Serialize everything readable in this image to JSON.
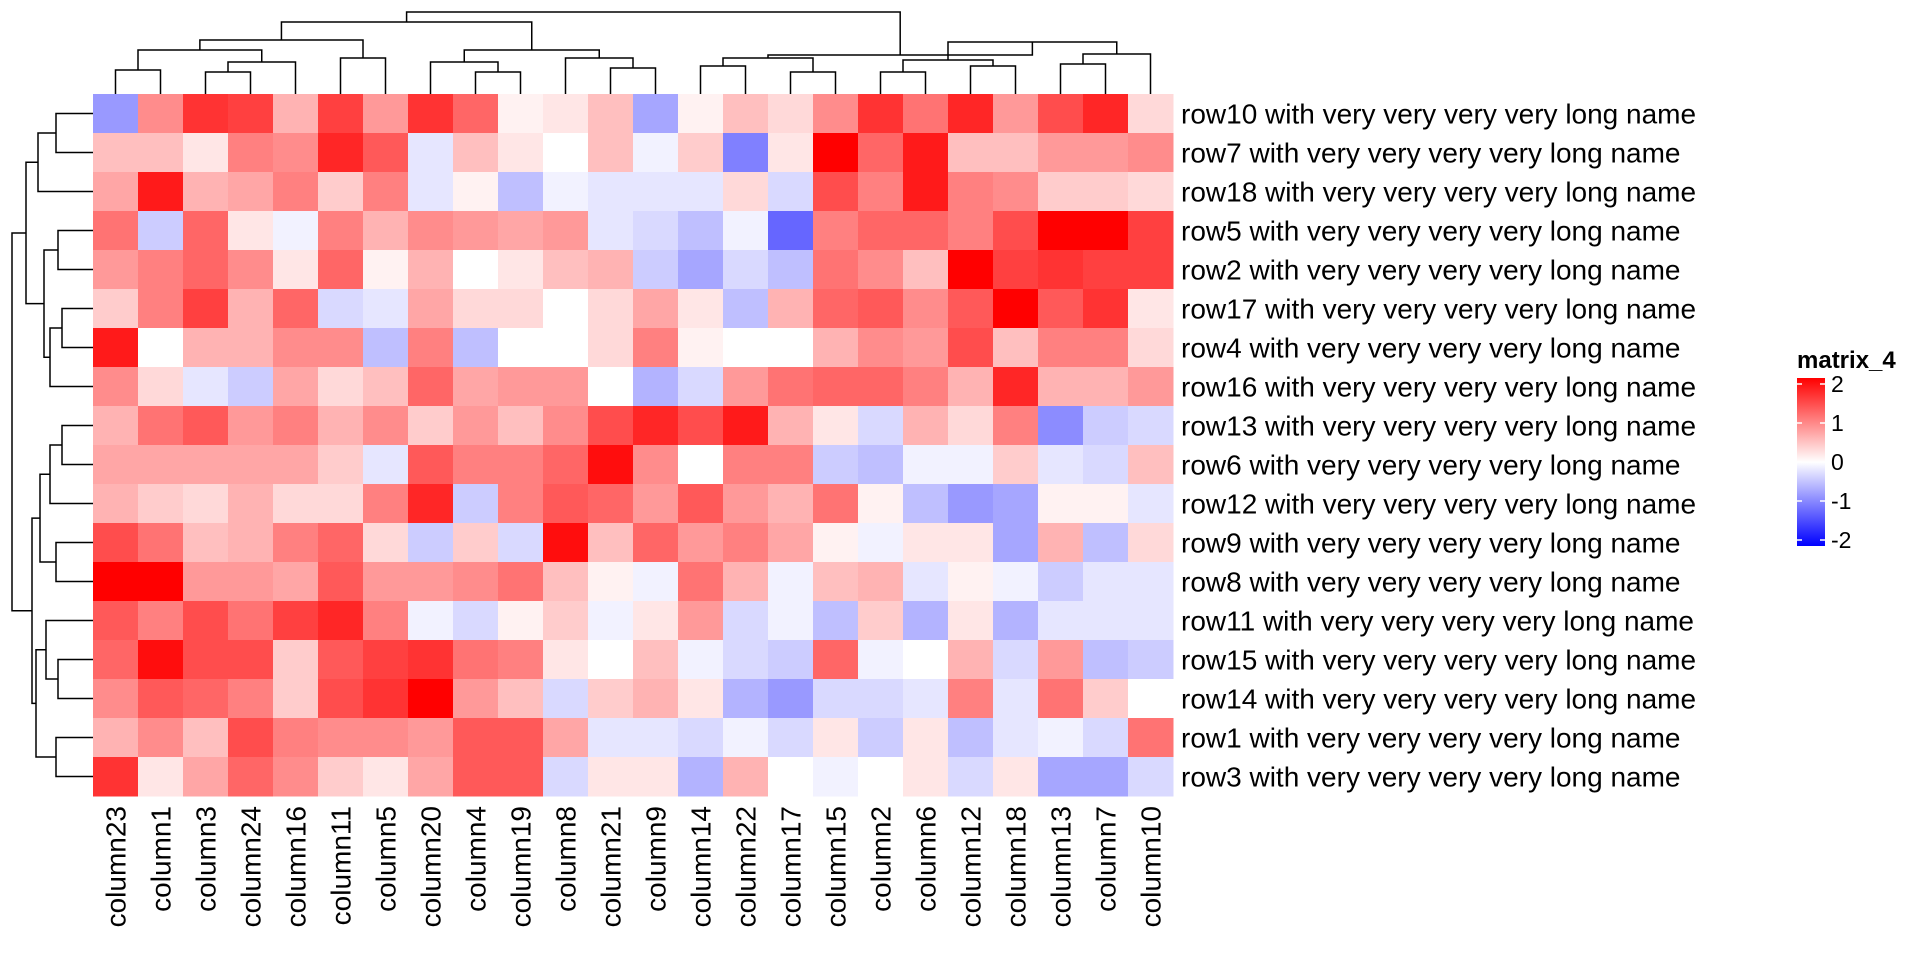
{
  "chart_data": {
    "type": "heatmap",
    "legend": {
      "title": "matrix_4",
      "placement": "right",
      "min": -2,
      "max": 2,
      "ticks": [
        2,
        1,
        0,
        -1,
        -2
      ],
      "tick_labels": [
        "2",
        "1",
        "0",
        "-1",
        "-2"
      ],
      "colors": {
        "low": "#0000FF",
        "mid": "#FFFFFF",
        "high": "#FF0000"
      }
    },
    "columns": [
      "column23",
      "column1",
      "column3",
      "column24",
      "column16",
      "column11",
      "column5",
      "column20",
      "column4",
      "column19",
      "column8",
      "column21",
      "column9",
      "column14",
      "column22",
      "column17",
      "column15",
      "column2",
      "column6",
      "column12",
      "column18",
      "column13",
      "column7",
      "column10"
    ],
    "rows": [
      "row10 with very very very very long name",
      "row7 with very very very very long name",
      "row18 with very very very very long name",
      "row5 with very very very very long name",
      "row2 with very very very very long name",
      "row17 with very very very very long name",
      "row4 with very very very very long name",
      "row16 with very very very very long name",
      "row13 with very very very very long name",
      "row6 with very very very very long name",
      "row12 with very very very very long name",
      "row9 with very very very very long name",
      "row8 with very very very very long name",
      "row11 with very very very very long name",
      "row15 with very very very very long name",
      "row14 with very very very very long name",
      "row1 with very very very very long name",
      "row3 with very very very very long name"
    ],
    "values": [
      [
        -0.8,
        0.9,
        1.6,
        1.5,
        0.6,
        1.5,
        0.8,
        1.6,
        1.2,
        0.1,
        0.2,
        0.5,
        -0.7,
        0.1,
        0.5,
        0.3,
        0.9,
        1.6,
        1.1,
        1.7,
        0.8,
        1.4,
        1.7,
        0.3
      ],
      [
        0.5,
        0.5,
        0.2,
        1.0,
        0.9,
        1.7,
        1.3,
        -0.2,
        0.5,
        0.2,
        0.0,
        0.5,
        -0.1,
        0.4,
        -1.0,
        0.2,
        2.3,
        1.2,
        1.8,
        0.5,
        0.5,
        0.8,
        0.8,
        0.9
      ],
      [
        0.7,
        1.8,
        0.6,
        0.7,
        1.0,
        0.4,
        1.0,
        -0.2,
        0.1,
        -0.5,
        -0.1,
        -0.2,
        -0.2,
        -0.2,
        0.3,
        -0.3,
        1.4,
        1.0,
        1.8,
        1.0,
        0.9,
        0.4,
        0.4,
        0.3
      ],
      [
        1.1,
        -0.4,
        1.2,
        0.2,
        -0.1,
        1.0,
        0.6,
        0.9,
        0.8,
        0.7,
        0.8,
        -0.2,
        -0.3,
        -0.5,
        -0.1,
        -1.2,
        1.0,
        1.2,
        1.2,
        1.0,
        1.4,
        2.2,
        2.3,
        1.5
      ],
      [
        0.8,
        1.0,
        1.2,
        0.9,
        0.2,
        1.2,
        0.1,
        0.6,
        0.0,
        0.2,
        0.5,
        0.6,
        -0.4,
        -0.7,
        -0.3,
        -0.5,
        1.1,
        0.9,
        0.5,
        2.3,
        1.5,
        1.6,
        1.5,
        1.5
      ],
      [
        0.4,
        1.0,
        1.5,
        0.6,
        1.2,
        -0.3,
        -0.2,
        0.7,
        0.3,
        0.3,
        0.0,
        0.3,
        0.7,
        0.2,
        -0.5,
        0.6,
        1.2,
        1.3,
        0.9,
        1.3,
        2.2,
        1.3,
        1.6,
        0.2
      ],
      [
        1.8,
        0.0,
        0.6,
        0.6,
        0.9,
        0.9,
        -0.5,
        1.0,
        -0.5,
        0.0,
        0.0,
        0.3,
        1.0,
        0.1,
        0.0,
        0.0,
        0.6,
        0.9,
        0.8,
        1.4,
        0.5,
        1.0,
        1.0,
        0.3
      ],
      [
        0.9,
        0.3,
        -0.2,
        -0.4,
        0.7,
        0.3,
        0.5,
        1.2,
        0.7,
        0.8,
        0.8,
        0.0,
        -0.6,
        -0.3,
        0.8,
        1.1,
        1.2,
        1.2,
        1.0,
        0.6,
        1.7,
        0.6,
        0.6,
        0.8
      ],
      [
        0.6,
        1.1,
        1.3,
        0.8,
        1.0,
        0.6,
        0.9,
        0.4,
        0.8,
        0.5,
        0.9,
        1.4,
        1.7,
        1.4,
        1.8,
        0.6,
        0.2,
        -0.3,
        0.6,
        0.3,
        1.0,
        -0.9,
        -0.4,
        -0.3
      ],
      [
        0.7,
        0.7,
        0.7,
        0.7,
        0.7,
        0.4,
        -0.2,
        1.3,
        1.0,
        1.0,
        1.2,
        1.9,
        0.9,
        0.0,
        1.0,
        1.0,
        -0.4,
        -0.5,
        -0.1,
        -0.1,
        0.4,
        -0.2,
        -0.3,
        0.5
      ],
      [
        0.6,
        0.4,
        0.3,
        0.6,
        0.3,
        0.3,
        1.0,
        1.7,
        -0.4,
        1.0,
        1.3,
        1.2,
        0.8,
        1.3,
        0.8,
        0.6,
        1.1,
        0.1,
        -0.5,
        -0.8,
        -0.7,
        0.1,
        0.1,
        -0.2
      ],
      [
        1.4,
        1.1,
        0.5,
        0.6,
        1.0,
        1.2,
        0.3,
        -0.4,
        0.4,
        -0.3,
        1.9,
        0.5,
        1.2,
        0.8,
        1.0,
        0.7,
        0.1,
        -0.1,
        0.2,
        0.2,
        -0.7,
        0.6,
        -0.5,
        0.3
      ],
      [
        2.0,
        2.3,
        0.8,
        0.8,
        0.7,
        1.3,
        0.8,
        0.8,
        0.9,
        1.1,
        0.5,
        0.1,
        -0.1,
        1.1,
        0.6,
        -0.1,
        0.5,
        0.6,
        -0.2,
        0.1,
        -0.1,
        -0.4,
        -0.2,
        -0.2
      ],
      [
        1.3,
        1.0,
        1.4,
        1.1,
        1.5,
        1.7,
        1.0,
        -0.1,
        -0.3,
        0.1,
        0.4,
        -0.1,
        0.2,
        0.8,
        -0.3,
        -0.1,
        -0.5,
        0.4,
        -0.6,
        0.2,
        -0.6,
        -0.2,
        -0.2,
        -0.2
      ],
      [
        1.2,
        1.9,
        1.4,
        1.4,
        0.4,
        1.3,
        1.5,
        1.6,
        1.1,
        1.0,
        0.2,
        0.0,
        0.5,
        -0.1,
        -0.3,
        -0.4,
        1.2,
        -0.1,
        0.0,
        0.6,
        -0.3,
        0.8,
        -0.5,
        -0.4
      ],
      [
        0.9,
        1.3,
        1.2,
        1.0,
        0.4,
        1.4,
        1.6,
        2.0,
        0.8,
        0.5,
        -0.3,
        0.4,
        0.6,
        0.2,
        -0.6,
        -0.8,
        -0.3,
        -0.3,
        -0.2,
        1.0,
        -0.2,
        1.1,
        0.4,
        0.0
      ],
      [
        0.6,
        0.9,
        0.5,
        1.4,
        1.0,
        0.9,
        0.9,
        0.8,
        1.3,
        1.3,
        0.7,
        -0.2,
        -0.2,
        -0.3,
        -0.1,
        -0.3,
        0.2,
        -0.4,
        0.2,
        -0.5,
        -0.2,
        -0.1,
        -0.3,
        1.1
      ],
      [
        1.6,
        0.2,
        0.7,
        1.2,
        0.9,
        0.4,
        0.2,
        0.7,
        1.3,
        1.3,
        -0.3,
        0.2,
        0.2,
        -0.6,
        0.6,
        0.0,
        -0.1,
        0.0,
        0.2,
        -0.3,
        0.2,
        -0.7,
        -0.7,
        -0.3
      ]
    ]
  }
}
